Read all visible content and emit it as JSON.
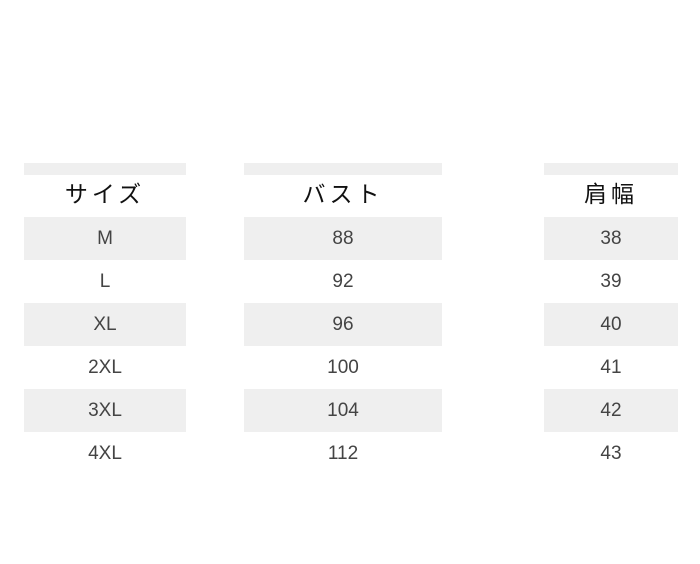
{
  "table": {
    "headers": [
      "サイズ",
      "バスト",
      "肩幅"
    ],
    "rows": [
      [
        "M",
        "88",
        "38"
      ],
      [
        "L",
        "92",
        "39"
      ],
      [
        "XL",
        "96",
        "40"
      ],
      [
        "2XL",
        "100",
        "41"
      ],
      [
        "3XL",
        "104",
        "42"
      ],
      [
        "4XL",
        "112",
        "43"
      ]
    ]
  },
  "colors": {
    "stripe": "#efefef",
    "text": "#444444"
  }
}
